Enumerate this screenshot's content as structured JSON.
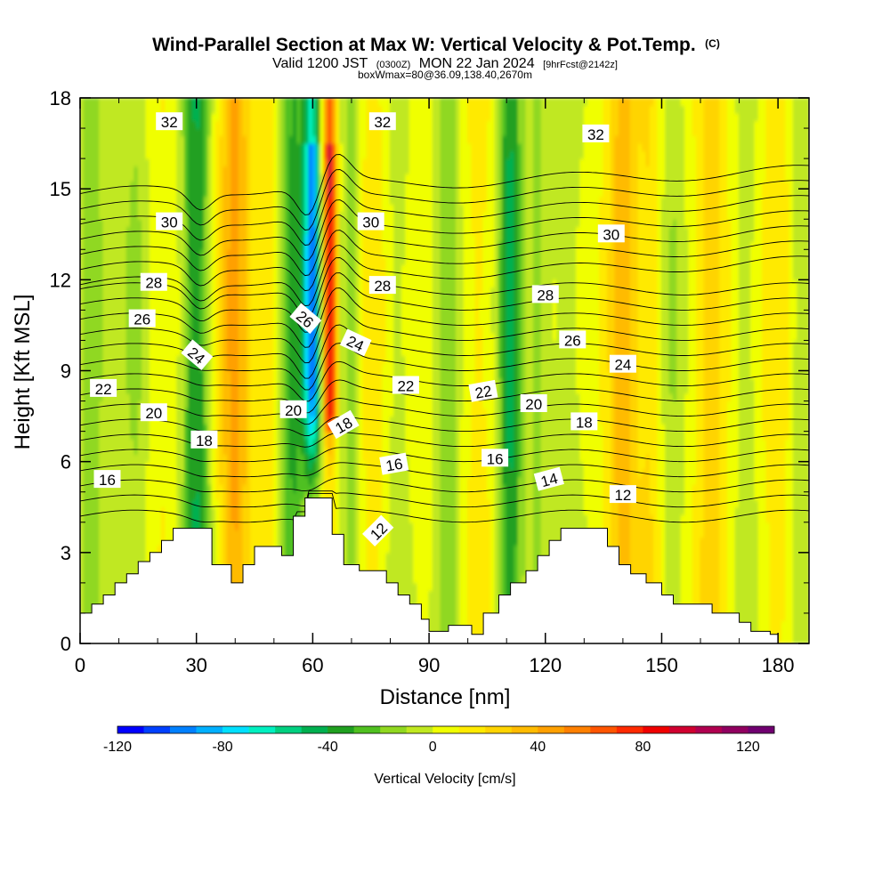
{
  "chart_data": {
    "type": "heatmap",
    "title": "Wind-Parallel Section at Max W: Vertical Velocity & Pot.Temp.",
    "title_mark": "(C)",
    "subtitle": {
      "prefix": "Valid 1200 JST",
      "utc": "(0300Z)",
      "date": "MON 22 Jan 2024",
      "forecast": "[9hrFcst@2142z]"
    },
    "subtitle2": "boxWmax=80@36.09,138.40,2670m",
    "xlabel": "Distance [nm]",
    "ylabel": "Height [Kft MSL]",
    "xlim": [
      0,
      188
    ],
    "ylim": [
      0,
      18
    ],
    "x_ticks": [
      0,
      30,
      60,
      90,
      120,
      150,
      180
    ],
    "y_ticks": [
      0,
      3,
      6,
      9,
      12,
      15,
      18
    ],
    "colorbar": {
      "title": "Vertical Velocity [cm/s]",
      "min": -120,
      "max": 130,
      "step": 10,
      "tick_values": [
        -120,
        -80,
        -40,
        0,
        40,
        80,
        120
      ],
      "colors": [
        "#0000ff",
        "#0040ff",
        "#0080ff",
        "#00b0ff",
        "#00e0ff",
        "#00f0c0",
        "#00d080",
        "#00b050",
        "#20a020",
        "#50c020",
        "#90d820",
        "#c0e820",
        "#f0ff00",
        "#ffea00",
        "#ffd400",
        "#ffbb00",
        "#ffa000",
        "#ff8000",
        "#ff5500",
        "#ff2a00",
        "#f00000",
        "#d00030",
        "#b00050",
        "#900060",
        "#700070"
      ]
    },
    "w_columns": [
      {
        "x": 3,
        "w": -20,
        "width": 3
      },
      {
        "x": 10,
        "w": -8,
        "width": 4
      },
      {
        "x": 15,
        "w": -12,
        "width": 3
      },
      {
        "x": 22,
        "w": 6,
        "width": 5
      },
      {
        "x": 30,
        "w": -45,
        "width": 3.5
      },
      {
        "x": 40,
        "w": 38,
        "width": 4
      },
      {
        "x": 48,
        "w": 12,
        "width": 3
      },
      {
        "x": 55,
        "w": -35,
        "width": 3
      },
      {
        "x": 60,
        "w": -95,
        "width": 2.3
      },
      {
        "x": 64.5,
        "w": 90,
        "width": 1.8
      },
      {
        "x": 70,
        "w": -18,
        "width": 3
      },
      {
        "x": 75,
        "w": 12,
        "width": 4
      },
      {
        "x": 82,
        "w": -10,
        "width": 3
      },
      {
        "x": 95,
        "w": -22,
        "width": 3
      },
      {
        "x": 103,
        "w": 10,
        "width": 4
      },
      {
        "x": 111,
        "w": -45,
        "width": 3
      },
      {
        "x": 118,
        "w": -15,
        "width": 3
      },
      {
        "x": 126,
        "w": -10,
        "width": 4
      },
      {
        "x": 140,
        "w": 30,
        "width": 4
      },
      {
        "x": 147,
        "w": 15,
        "width": 3
      },
      {
        "x": 153,
        "w": -12,
        "width": 3
      },
      {
        "x": 163,
        "w": 22,
        "width": 4
      },
      {
        "x": 172,
        "w": -10,
        "width": 3
      },
      {
        "x": 180,
        "w": 12,
        "width": 4
      },
      {
        "x": 186,
        "w": -12,
        "width": 3
      }
    ],
    "terrain": [
      [
        0,
        1.0
      ],
      [
        3,
        1.0
      ],
      [
        3,
        1.3
      ],
      [
        6,
        1.3
      ],
      [
        6,
        1.6
      ],
      [
        9,
        1.6
      ],
      [
        9,
        2.0
      ],
      [
        12,
        2.0
      ],
      [
        12,
        2.3
      ],
      [
        15,
        2.3
      ],
      [
        15,
        2.7
      ],
      [
        18,
        2.7
      ],
      [
        18,
        3.0
      ],
      [
        21,
        3.0
      ],
      [
        21,
        3.4
      ],
      [
        24,
        3.4
      ],
      [
        24,
        3.8
      ],
      [
        34,
        3.8
      ],
      [
        34,
        2.6
      ],
      [
        39,
        2.6
      ],
      [
        39,
        2.0
      ],
      [
        42,
        2.0
      ],
      [
        42,
        2.6
      ],
      [
        45,
        2.6
      ],
      [
        45,
        3.2
      ],
      [
        52,
        3.2
      ],
      [
        52,
        2.9
      ],
      [
        55,
        2.9
      ],
      [
        55,
        4.2
      ],
      [
        58,
        4.2
      ],
      [
        58,
        4.8
      ],
      [
        65,
        4.8
      ],
      [
        65,
        3.6
      ],
      [
        68,
        3.6
      ],
      [
        68,
        2.6
      ],
      [
        72,
        2.6
      ],
      [
        72,
        2.4
      ],
      [
        79,
        2.4
      ],
      [
        79,
        2.0
      ],
      [
        82,
        2.0
      ],
      [
        82,
        1.6
      ],
      [
        85,
        1.6
      ],
      [
        85,
        1.3
      ],
      [
        88,
        1.3
      ],
      [
        88,
        0.8
      ],
      [
        90,
        0.8
      ],
      [
        90,
        0.4
      ],
      [
        95,
        0.4
      ],
      [
        95,
        0.6
      ],
      [
        101,
        0.6
      ],
      [
        101,
        0.3
      ],
      [
        104,
        0.3
      ],
      [
        104,
        1.0
      ],
      [
        108,
        1.0
      ],
      [
        108,
        1.6
      ],
      [
        111,
        1.6
      ],
      [
        111,
        2.0
      ],
      [
        115,
        2.0
      ],
      [
        115,
        2.4
      ],
      [
        118,
        2.4
      ],
      [
        118,
        2.9
      ],
      [
        121,
        2.9
      ],
      [
        121,
        3.4
      ],
      [
        124,
        3.4
      ],
      [
        124,
        3.8
      ],
      [
        136,
        3.8
      ],
      [
        136,
        3.2
      ],
      [
        139,
        3.2
      ],
      [
        139,
        2.6
      ],
      [
        142,
        2.6
      ],
      [
        142,
        2.3
      ],
      [
        146,
        2.3
      ],
      [
        146,
        2.0
      ],
      [
        150,
        2.0
      ],
      [
        150,
        1.6
      ],
      [
        153,
        1.6
      ],
      [
        153,
        1.3
      ],
      [
        160,
        1.3
      ],
      [
        160,
        1.3
      ],
      [
        163,
        1.3
      ],
      [
        163,
        1.0
      ],
      [
        170,
        1.0
      ],
      [
        170,
        0.7
      ],
      [
        173,
        0.7
      ],
      [
        173,
        0.4
      ],
      [
        178,
        0.4
      ],
      [
        178,
        0.3
      ],
      [
        180,
        0.3
      ],
      [
        180,
        0.0
      ],
      [
        188,
        0.0
      ]
    ],
    "theta_levels": [
      11,
      12,
      13,
      14,
      15,
      16,
      17,
      18,
      19,
      20,
      21,
      22,
      23,
      24,
      25,
      26,
      27,
      28,
      29,
      30,
      31,
      32,
      33
    ],
    "theta_labels": [
      {
        "text": "32",
        "x": 23,
        "y": 17.2,
        "angle": 0
      },
      {
        "text": "32",
        "x": 78,
        "y": 17.2,
        "angle": 0
      },
      {
        "text": "32",
        "x": 133,
        "y": 16.8,
        "angle": 0
      },
      {
        "text": "30",
        "x": 23,
        "y": 13.9,
        "angle": 0
      },
      {
        "text": "30",
        "x": 75,
        "y": 13.9,
        "angle": 0
      },
      {
        "text": "30",
        "x": 137,
        "y": 13.5,
        "angle": 0
      },
      {
        "text": "28",
        "x": 19,
        "y": 11.9,
        "angle": 0
      },
      {
        "text": "28",
        "x": 78,
        "y": 11.8,
        "angle": 0
      },
      {
        "text": "28",
        "x": 120,
        "y": 11.5,
        "angle": 0
      },
      {
        "text": "26",
        "x": 16,
        "y": 10.7,
        "angle": 0
      },
      {
        "text": "26",
        "x": 58,
        "y": 10.7,
        "angle": 40
      },
      {
        "text": "26",
        "x": 127,
        "y": 10.0,
        "angle": 0
      },
      {
        "text": "24",
        "x": 30,
        "y": 9.5,
        "angle": 40
      },
      {
        "text": "24",
        "x": 71,
        "y": 9.9,
        "angle": 25
      },
      {
        "text": "24",
        "x": 140,
        "y": 9.2,
        "angle": 0
      },
      {
        "text": "22",
        "x": 6,
        "y": 8.4,
        "angle": 0
      },
      {
        "text": "22",
        "x": 84,
        "y": 8.5,
        "angle": 0
      },
      {
        "text": "22",
        "x": 104,
        "y": 8.3,
        "angle": -10
      },
      {
        "text": "20",
        "x": 19,
        "y": 7.6,
        "angle": 0
      },
      {
        "text": "20",
        "x": 55,
        "y": 7.7,
        "angle": 0
      },
      {
        "text": "20",
        "x": 117,
        "y": 7.9,
        "angle": 0
      },
      {
        "text": "18",
        "x": 32,
        "y": 6.7,
        "angle": 0
      },
      {
        "text": "18",
        "x": 68,
        "y": 7.2,
        "angle": -30
      },
      {
        "text": "18",
        "x": 130,
        "y": 7.3,
        "angle": 0
      },
      {
        "text": "16",
        "x": 7,
        "y": 5.4,
        "angle": 0
      },
      {
        "text": "16",
        "x": 81,
        "y": 5.9,
        "angle": -10
      },
      {
        "text": "16",
        "x": 107,
        "y": 6.1,
        "angle": 0
      },
      {
        "text": "14",
        "x": 121,
        "y": 5.4,
        "angle": -15
      },
      {
        "text": "12",
        "x": 77,
        "y": 3.7,
        "angle": -45
      },
      {
        "text": "12",
        "x": 140,
        "y": 4.9,
        "angle": 0
      }
    ]
  }
}
